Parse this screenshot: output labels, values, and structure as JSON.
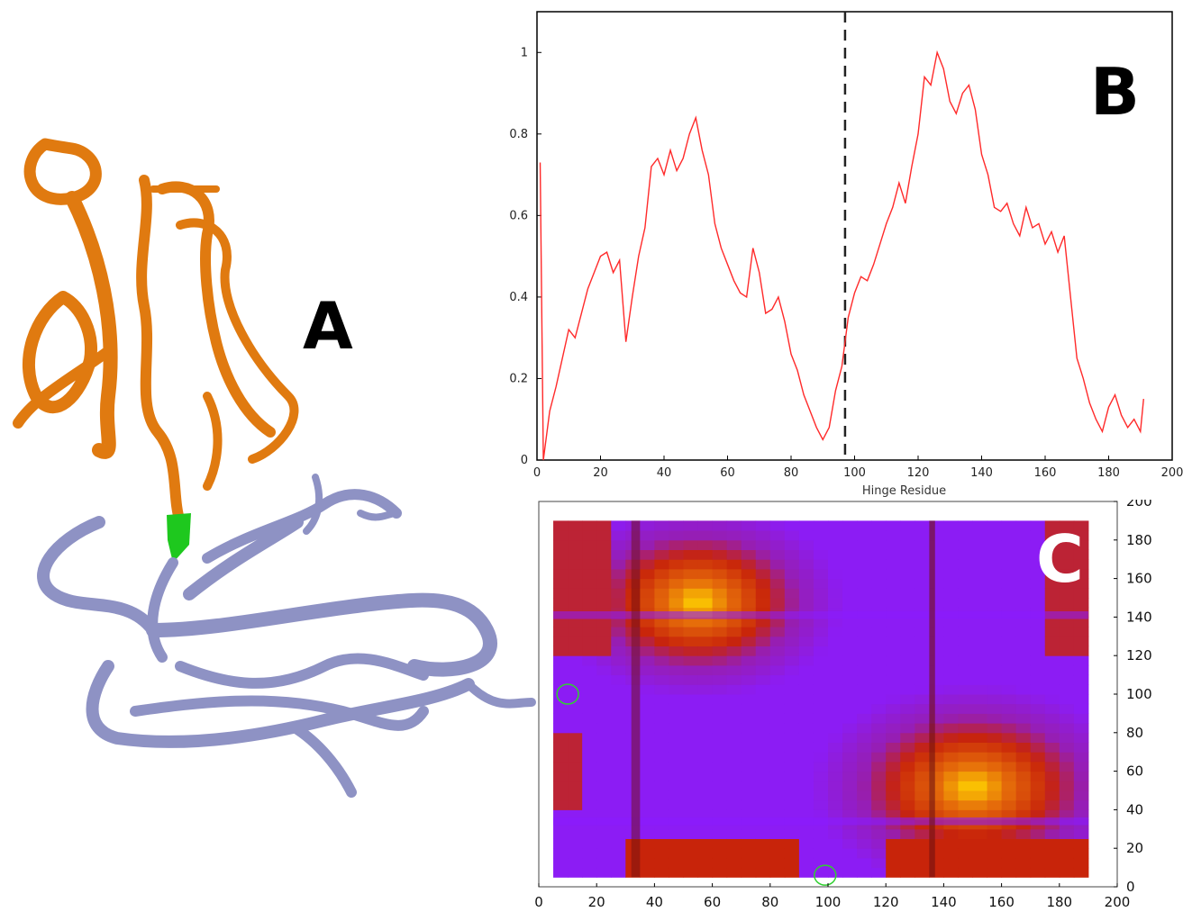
{
  "panels": {
    "a_label": "A",
    "b_label": "B",
    "c_label": "C"
  },
  "colors": {
    "domain_top": "#e07a10",
    "domain_bottom": "#8e92c4",
    "hinge": "#1ec81e",
    "line": "#ff2a2a",
    "heat_low": "#8a1cff",
    "heat_mid": "#c8240a",
    "heat_high": "#ffd000"
  },
  "chart_data": [
    {
      "type": "line",
      "title": "",
      "xlabel": "Hinge Residue",
      "ylabel": "",
      "xlim": [
        0,
        200
      ],
      "ylim": [
        0,
        1.1
      ],
      "xticks": [
        0,
        20,
        40,
        60,
        80,
        100,
        120,
        140,
        160,
        180,
        200
      ],
      "yticks": [
        0,
        0.2,
        0.4,
        0.6,
        0.8,
        1
      ],
      "vline_x": 97,
      "grid": false,
      "series": [
        {
          "x": [
            1,
            2,
            4,
            6,
            8,
            10,
            12,
            14,
            16,
            18,
            20,
            22,
            24,
            26,
            28,
            30,
            32,
            34,
            36,
            38,
            40,
            42,
            44,
            46,
            48,
            50,
            52,
            54,
            56,
            58,
            60,
            62,
            64,
            66,
            68,
            70,
            72,
            74,
            76,
            78,
            80,
            82,
            84,
            86,
            88,
            90,
            92,
            94,
            96,
            98,
            100,
            102,
            104,
            106,
            108,
            110,
            112,
            114,
            116,
            118,
            120,
            122,
            124,
            126,
            128,
            130,
            132,
            134,
            136,
            138,
            140,
            142,
            144,
            146,
            148,
            150,
            152,
            154,
            156,
            158,
            160,
            162,
            164,
            166,
            168,
            170,
            172,
            174,
            176,
            178,
            180,
            182,
            184,
            186,
            188,
            190,
            191
          ],
          "y": [
            0.73,
            0.0,
            0.12,
            0.18,
            0.25,
            0.32,
            0.3,
            0.36,
            0.42,
            0.46,
            0.5,
            0.51,
            0.46,
            0.49,
            0.29,
            0.4,
            0.5,
            0.57,
            0.72,
            0.74,
            0.7,
            0.76,
            0.71,
            0.74,
            0.8,
            0.84,
            0.76,
            0.7,
            0.58,
            0.52,
            0.48,
            0.44,
            0.41,
            0.4,
            0.52,
            0.46,
            0.36,
            0.37,
            0.4,
            0.34,
            0.26,
            0.22,
            0.16,
            0.12,
            0.08,
            0.05,
            0.08,
            0.17,
            0.23,
            0.35,
            0.41,
            0.45,
            0.44,
            0.48,
            0.53,
            0.58,
            0.62,
            0.68,
            0.63,
            0.72,
            0.8,
            0.94,
            0.92,
            1.0,
            0.96,
            0.88,
            0.85,
            0.9,
            0.92,
            0.86,
            0.75,
            0.7,
            0.62,
            0.61,
            0.63,
            0.58,
            0.55,
            0.62,
            0.57,
            0.58,
            0.53,
            0.56,
            0.51,
            0.55,
            0.4,
            0.25,
            0.2,
            0.14,
            0.1,
            0.07,
            0.13,
            0.16,
            0.11,
            0.08,
            0.1,
            0.07,
            0.15
          ]
        }
      ]
    },
    {
      "type": "heatmap",
      "title": "",
      "xlabel": "",
      "ylabel": "",
      "xlim": [
        0,
        200
      ],
      "ylim": [
        0,
        200
      ],
      "xticks": [
        0,
        20,
        40,
        60,
        80,
        100,
        120,
        140,
        160,
        180,
        200
      ],
      "yticks": [
        0,
        20,
        40,
        60,
        80,
        100,
        120,
        140,
        160,
        180,
        200
      ],
      "y_axis_side": "right",
      "data_extent": [
        5,
        190
      ],
      "hot_spots": [
        {
          "cx": 55,
          "cy": 148,
          "rx": 45,
          "ry": 45
        },
        {
          "cx": 150,
          "cy": 52,
          "rx": 50,
          "ry": 48
        }
      ],
      "markers": [
        {
          "x": 10,
          "y": 100
        },
        {
          "x": 99,
          "y": 6
        }
      ]
    }
  ]
}
